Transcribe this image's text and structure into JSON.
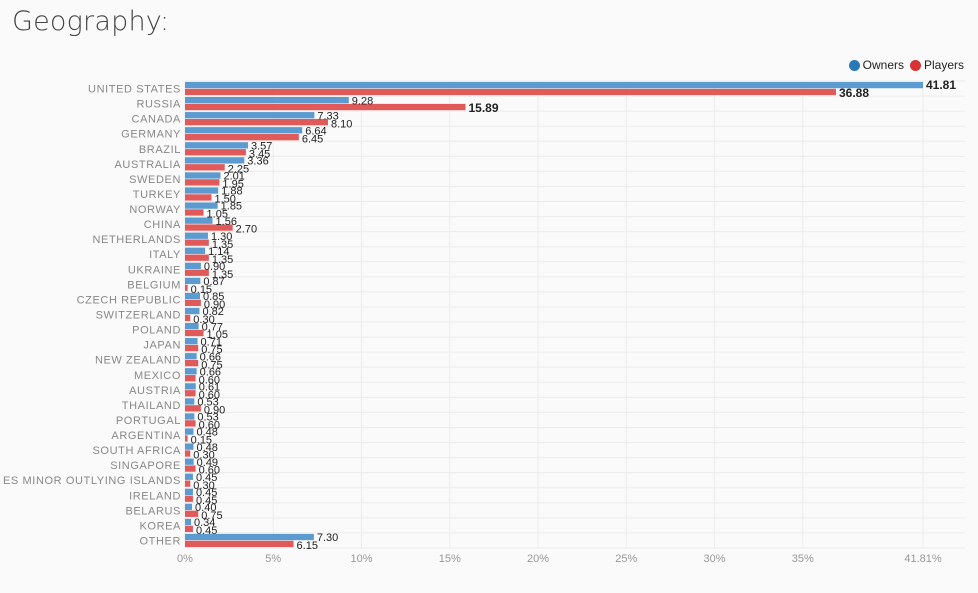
{
  "page": {
    "title": "Geography:"
  },
  "legend": {
    "owners_label": "Owners",
    "players_label": "Players",
    "owners_color": "#2a78b5",
    "players_color": "#d93232"
  },
  "chart_data": {
    "type": "bar",
    "orientation": "horizontal",
    "title": "",
    "xlabel": "",
    "ylabel": "",
    "xlim": [
      0,
      41.81
    ],
    "x_ticks": [
      "0%",
      "5%",
      "10%",
      "15%",
      "20%",
      "25%",
      "30%",
      "35%",
      "41.81%"
    ],
    "grid": true,
    "legend_position": "top-right",
    "categories": [
      "UNITED STATES",
      "RUSSIA",
      "CANADA",
      "GERMANY",
      "BRAZIL",
      "AUSTRALIA",
      "SWEDEN",
      "TURKEY",
      "NORWAY",
      "CHINA",
      "NETHERLANDS",
      "ITALY",
      "UKRAINE",
      "BELGIUM",
      "CZECH REPUBLIC",
      "SWITZERLAND",
      "POLAND",
      "JAPAN",
      "NEW ZEALAND",
      "MEXICO",
      "AUSTRIA",
      "THAILAND",
      "PORTUGAL",
      "ARGENTINA",
      "SOUTH AFRICA",
      "SINGAPORE",
      "ES MINOR OUTLYING ISLANDS",
      "IRELAND",
      "BELARUS",
      "KOREA",
      "OTHER"
    ],
    "series": [
      {
        "name": "Owners",
        "color": "#5b9bd0",
        "values": [
          41.81,
          9.28,
          7.33,
          6.64,
          3.57,
          3.36,
          2.01,
          1.88,
          1.85,
          1.56,
          1.3,
          1.14,
          0.9,
          0.87,
          0.85,
          0.82,
          0.77,
          0.71,
          0.66,
          0.66,
          0.61,
          0.53,
          0.53,
          0.48,
          0.48,
          0.49,
          0.45,
          0.45,
          0.4,
          0.34,
          7.3
        ],
        "labels": [
          "41.81",
          "9.28",
          "7.33",
          "6.64",
          "3.57",
          "3.36",
          "2.01",
          "1.88",
          "1.85",
          "1.56",
          "1.30",
          "1.14",
          "0.90",
          "0.87",
          "0.85",
          "0.82",
          "0.77",
          "0.71",
          "0.66",
          "0.66",
          "0.61",
          "0.53",
          "0.53",
          "0.48",
          "0.48",
          "0.49",
          "0.45",
          "0.45",
          "0.40",
          "0.34",
          "7.30"
        ]
      },
      {
        "name": "Players",
        "color": "#e05a5a",
        "values": [
          36.88,
          15.89,
          8.1,
          6.45,
          3.45,
          2.25,
          1.95,
          1.5,
          1.05,
          2.7,
          1.35,
          1.35,
          1.35,
          0.15,
          0.9,
          0.3,
          1.05,
          0.75,
          0.75,
          0.6,
          0.6,
          0.9,
          0.6,
          0.15,
          0.3,
          0.6,
          0.3,
          0.45,
          0.75,
          0.45,
          6.15
        ],
        "labels": [
          "36.88",
          "15.89",
          "8.10",
          "6.45",
          "3.45",
          "2.25",
          "1.95",
          "1.50",
          "1.05",
          "2.70",
          "1.35",
          "1.35",
          "1.35",
          "0.15",
          "0.90",
          "0.30",
          "1.05",
          "0.75",
          "0.75",
          "0.60",
          "0.60",
          "0.90",
          "0.60",
          "0.15",
          "0.30",
          "0.60",
          "0.30",
          "0.45",
          "0.75",
          "0.45",
          "6.15"
        ]
      }
    ]
  }
}
